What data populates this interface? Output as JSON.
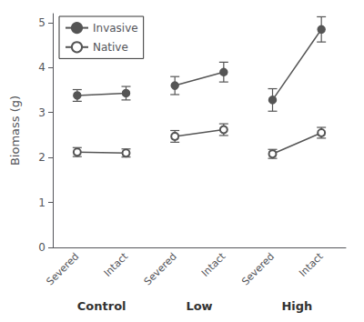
{
  "chart_data": {
    "type": "line",
    "ylabel": "Biomass (g)",
    "categories": [
      "Severed",
      "Intact",
      "Severed",
      "Intact",
      "Severed",
      "Intact"
    ],
    "groups": [
      "Control",
      "Low",
      "High"
    ],
    "series": [
      {
        "name": "Invasive",
        "color": "#555555",
        "marker": "circle",
        "values": [
          3.38,
          3.43,
          3.6,
          3.9,
          3.28,
          4.85
        ],
        "errors": [
          0.13,
          0.15,
          0.2,
          0.22,
          0.25,
          0.28
        ]
      },
      {
        "name": "Native",
        "color": "#555555",
        "marker": "emptyCircle",
        "values": [
          2.12,
          2.1,
          2.47,
          2.62,
          2.08,
          2.55
        ],
        "errors": [
          0.1,
          0.09,
          0.13,
          0.13,
          0.1,
          0.12
        ]
      }
    ],
    "ylim": [
      0,
      5.2
    ],
    "yticks": [
      0,
      1,
      2,
      3,
      4,
      5
    ],
    "grid": false,
    "legend": "upper left"
  }
}
